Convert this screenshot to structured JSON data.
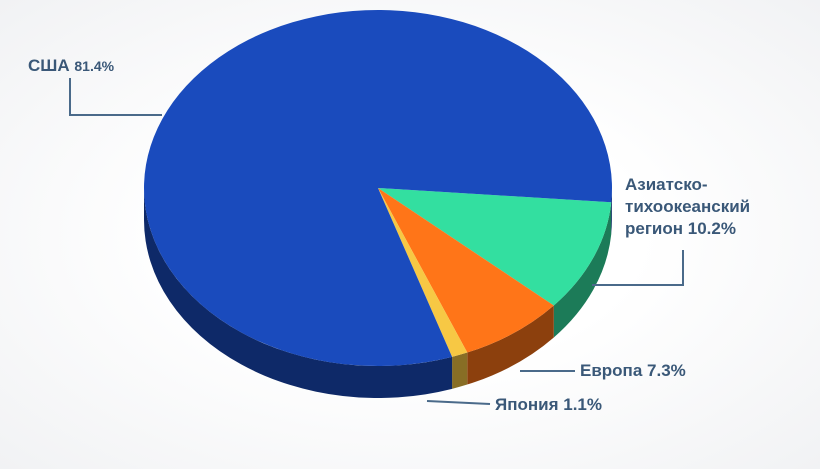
{
  "chart_data": {
    "type": "pie",
    "categories": [
      "Азиатско-тихоокеанский регион",
      "Европа",
      "Япония",
      "США"
    ],
    "values": [
      10.2,
      7.3,
      1.1,
      81.4
    ],
    "value_labels": [
      "10.2%",
      "7.3%",
      "1.1%",
      "81.4%"
    ],
    "colors": [
      "#33dfa0",
      "#ff7518",
      "#f7c844",
      "#1a4bbd"
    ]
  }
}
